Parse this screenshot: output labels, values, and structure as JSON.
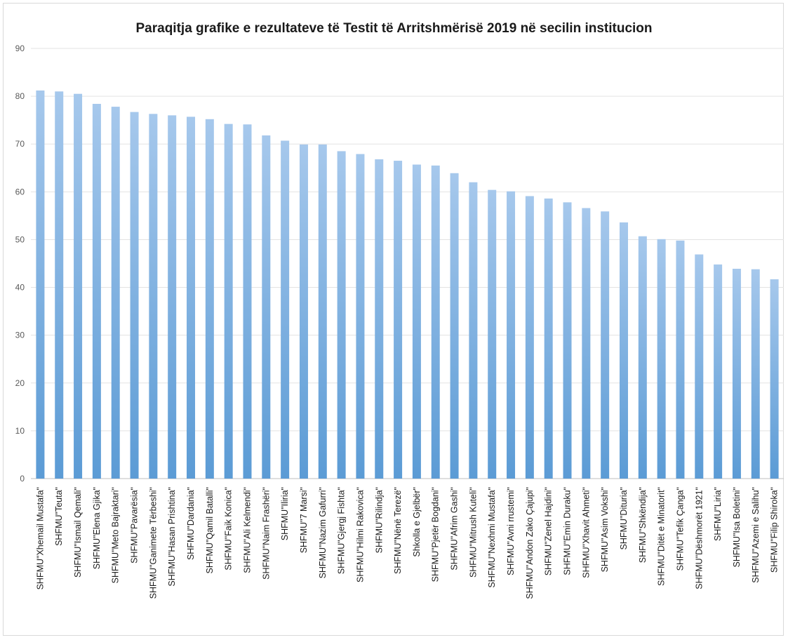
{
  "chart_data": {
    "type": "bar",
    "title": "Paraqitja grafike e rezultateve të Testit të Arritshmërisë 2019 në secilin institucion",
    "xlabel": "",
    "ylabel": "",
    "ylim": [
      0,
      90
    ],
    "yticks": [
      0,
      10,
      20,
      30,
      40,
      50,
      60,
      70,
      80,
      90
    ],
    "grid": true,
    "bar_color": "#5b9bd5",
    "bar_color_light": "#a6c8ec",
    "categories": [
      "SHFMU\"Xhemail Mustafa\"",
      "SHFMU\"Teuta\"",
      "SHFMU\"Ismail Qemali\"",
      "SHFMU\"Elena Gjika\"",
      "SHFMU\"Meto Bajraktari\"",
      "SHFMU\"Pavarësia\"",
      "SHFMU\"Ganimete Tërbeshi\"",
      "SHFMU\"Hasan Prishtina\"",
      "SHFMU\"Dardania\"",
      "SHFMU\"Qamil Batalli\"",
      "SHFMU\"Faik Konica\"",
      "SHFMU\"Ali Kelmendi\"",
      "SHFMU\"Naim Frashëri\"",
      "SHFMU\"Iliria\"",
      "SHFMU\"7 Marsi\"",
      "SHFMU\"Nazim Gafurri\"",
      "SHFMU\"Gjergj Fishta\"",
      "SHFMU\"Hilmi Rakovica\"",
      "SHFMU\"Rilindja\"",
      "SHFMU\"Nënë Terezë\"",
      "Shkolla e Gjelbër\"",
      "SHFMU\"Pjetër Bogdani\"",
      "SHFMU\"Afrim Gashi\"",
      "SHFMU\"Mitrush Kuteli\"",
      "SHFMU\"Nexhmi Mustafa\"",
      "SHFMU\"Avni rrustemi\"",
      "SHFMU\"Andon Zako Çajupi\"",
      "SHFMU\"Zenel Hajdini\"",
      "SHFMU\"Emin Duraku\"",
      "SHFMU\"Xhavit Ahmeti\"",
      "SHFMU\"Asim Vokshi\"",
      "SHFMU\"Dituria\"",
      "SHFMU\"Shkëndija\"",
      "SHFMU\"Ditët e Minatorit\"",
      "SHFMU\"Tefik Çanga\"",
      "SHFMU\"Dëshmorët 1921\"",
      "SHFMU\"Liria\"",
      "SHFMU\"Isa Boletini\"",
      "SHFMU\"Azemi e Salihu\"",
      "SHFMU\"Filip Shiroka\""
    ],
    "values": [
      81.2,
      81.0,
      80.5,
      78.4,
      77.8,
      76.7,
      76.3,
      76.0,
      75.7,
      75.2,
      74.2,
      74.1,
      71.8,
      70.7,
      69.9,
      69.9,
      68.5,
      67.9,
      66.8,
      66.5,
      65.7,
      65.5,
      63.9,
      62.0,
      60.4,
      60.1,
      59.1,
      58.6,
      57.8,
      56.6,
      55.9,
      53.6,
      50.7,
      50.1,
      49.8,
      46.9,
      44.8,
      43.9,
      43.8,
      41.7
    ]
  }
}
